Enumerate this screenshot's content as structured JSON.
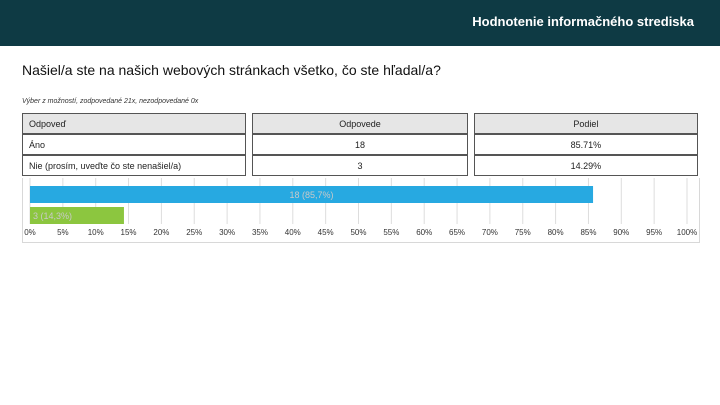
{
  "header": {
    "title": "Hodnotenie informačného strediska"
  },
  "question": "Našiel/a ste na našich webových stránkach všetko, čo ste hľadal/a?",
  "meta": "Výber z možností, zodpovedané 21x, nezodpovedané 0x",
  "table": {
    "headers": [
      "Odpoveď",
      "Odpovede",
      "Podiel"
    ],
    "rows": [
      [
        "Áno",
        "18",
        "85.71%"
      ],
      [
        "Nie (prosím, uveďte čo ste nenašiel/a)",
        "3",
        "14.29%"
      ]
    ]
  },
  "chart_data": {
    "type": "bar",
    "orientation": "horizontal",
    "categories": [
      "Áno",
      "Nie (prosím, uveďte čo ste nenašiel/a)"
    ],
    "values": [
      85.7,
      14.3
    ],
    "counts": [
      18,
      3
    ],
    "data_labels": [
      "18 (85,7%)",
      "3 (14,3%)"
    ],
    "colors": [
      "#27a9e1",
      "#8cc63f"
    ],
    "xlim": [
      0,
      100
    ],
    "x_ticks": [
      "0%",
      "5%",
      "10%",
      "15%",
      "20%",
      "25%",
      "30%",
      "35%",
      "40%",
      "45%",
      "50%",
      "55%",
      "60%",
      "65%",
      "70%",
      "75%",
      "80%",
      "85%",
      "90%",
      "95%",
      "100%"
    ],
    "grid": true,
    "label_color": "#c9c9c9"
  }
}
